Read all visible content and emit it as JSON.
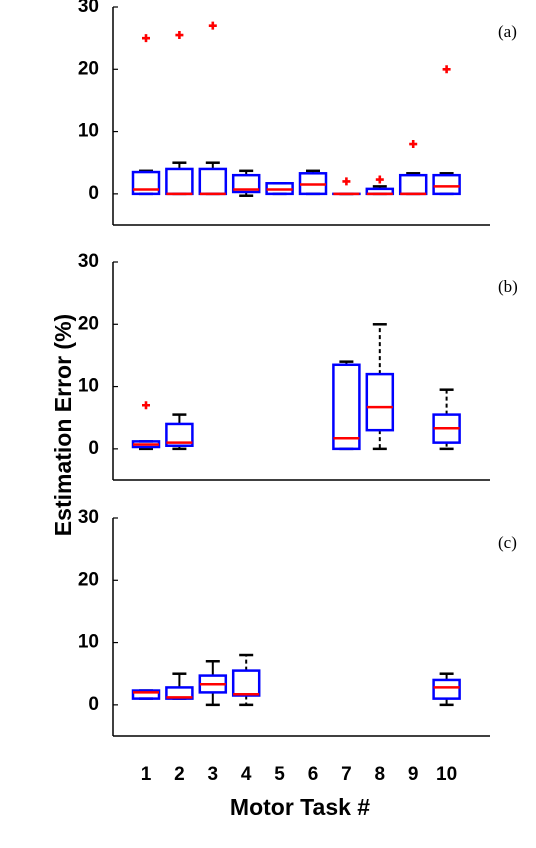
{
  "figure": {
    "ylabel": "Estimation Error (%)",
    "xlabel": "Motor Task #"
  },
  "colors": {
    "box": "#0000ff",
    "median": "#ff0000",
    "whisker": "#000000",
    "outlier": "#ff0000"
  },
  "chart_data": [
    {
      "type": "box",
      "panel_label": "(a)",
      "xlabel": "",
      "ylabel": "",
      "ylim": [
        -5,
        30
      ],
      "yticks": [
        0,
        10,
        20,
        30
      ],
      "categories": [
        "1",
        "2",
        "3",
        "4",
        "5",
        "6",
        "7",
        "8",
        "9",
        "10"
      ],
      "boxes": [
        {
          "task": "1",
          "lo": 0,
          "q1": 0,
          "median": 0.7,
          "q3": 3.5,
          "hi": 3.7,
          "outliers": [
            25
          ],
          "dashed": false
        },
        {
          "task": "2",
          "lo": 0,
          "q1": 0,
          "median": 0,
          "q3": 4.0,
          "hi": 5.0,
          "outliers": [
            25.5
          ],
          "dashed": false
        },
        {
          "task": "3",
          "lo": 0,
          "q1": 0,
          "median": 0,
          "q3": 4.0,
          "hi": 5.0,
          "outliers": [
            27
          ],
          "dashed": false
        },
        {
          "task": "4",
          "lo": -0.3,
          "q1": 0.3,
          "median": 0.7,
          "q3": 3.0,
          "hi": 3.7,
          "outliers": [],
          "dashed": false
        },
        {
          "task": "5",
          "lo": 0,
          "q1": 0,
          "median": 0.7,
          "q3": 1.7,
          "hi": 1.7,
          "outliers": [],
          "dashed": false
        },
        {
          "task": "6",
          "lo": 0,
          "q1": 0,
          "median": 1.5,
          "q3": 3.3,
          "hi": 3.7,
          "outliers": [],
          "dashed": false
        },
        {
          "task": "7",
          "lo": 0,
          "q1": 0,
          "median": 0,
          "q3": 0,
          "hi": 0,
          "outliers": [
            2
          ],
          "dashed": false
        },
        {
          "task": "8",
          "lo": 0,
          "q1": 0,
          "median": 0,
          "q3": 0.8,
          "hi": 1.2,
          "outliers": [
            2.3
          ],
          "dashed": false
        },
        {
          "task": "9",
          "lo": 0,
          "q1": 0,
          "median": 0,
          "q3": 3.0,
          "hi": 3.3,
          "outliers": [
            8
          ],
          "dashed": false
        },
        {
          "task": "10",
          "lo": 0,
          "q1": 0,
          "median": 1.2,
          "q3": 3.0,
          "hi": 3.3,
          "outliers": [
            20
          ],
          "dashed": false
        }
      ]
    },
    {
      "type": "box",
      "panel_label": "(b)",
      "xlabel": "",
      "ylabel": "",
      "ylim": [
        -5,
        30
      ],
      "yticks": [
        0,
        10,
        20,
        30
      ],
      "categories": [
        "1",
        "2",
        "3",
        "4",
        "5",
        "6",
        "7",
        "8",
        "9",
        "10"
      ],
      "boxes": [
        {
          "task": "1",
          "lo": 0,
          "q1": 0.3,
          "median": 0.7,
          "q3": 1.2,
          "hi": 1.2,
          "outliers": [
            7
          ],
          "dashed": false
        },
        {
          "task": "2",
          "lo": 0,
          "q1": 0.5,
          "median": 1.0,
          "q3": 4.0,
          "hi": 5.5,
          "outliers": [],
          "dashed": false
        },
        {
          "task": "7",
          "lo": 0,
          "q1": 0,
          "median": 1.7,
          "q3": 13.5,
          "hi": 14.0,
          "outliers": [],
          "dashed": false
        },
        {
          "task": "8",
          "lo": 0,
          "q1": 3.0,
          "median": 6.7,
          "q3": 12.0,
          "hi": 20.0,
          "outliers": [],
          "dashed": true
        },
        {
          "task": "10",
          "lo": 0,
          "q1": 1.0,
          "median": 3.3,
          "q3": 5.5,
          "hi": 9.5,
          "outliers": [],
          "dashed": true
        }
      ]
    },
    {
      "type": "box",
      "panel_label": "(c)",
      "xlabel": "",
      "ylabel": "",
      "ylim": [
        -5,
        30
      ],
      "yticks": [
        0,
        10,
        20,
        30
      ],
      "categories": [
        "1",
        "2",
        "3",
        "4",
        "5",
        "6",
        "7",
        "8",
        "9",
        "10"
      ],
      "boxes": [
        {
          "task": "1",
          "lo": 1.0,
          "q1": 1.0,
          "median": 2.0,
          "q3": 2.3,
          "hi": 2.3,
          "outliers": [],
          "dashed": false
        },
        {
          "task": "2",
          "lo": 1.0,
          "q1": 1.0,
          "median": 1.2,
          "q3": 2.8,
          "hi": 5.0,
          "outliers": [],
          "dashed": false
        },
        {
          "task": "3",
          "lo": 0,
          "q1": 2.0,
          "median": 3.3,
          "q3": 4.7,
          "hi": 7.0,
          "outliers": [],
          "dashed": false
        },
        {
          "task": "4",
          "lo": 0,
          "q1": 1.5,
          "median": 1.7,
          "q3": 5.5,
          "hi": 8.0,
          "outliers": [],
          "dashed": true
        },
        {
          "task": "10",
          "lo": 0,
          "q1": 1.0,
          "median": 2.8,
          "q3": 4.0,
          "hi": 5.0,
          "outliers": [],
          "dashed": false
        }
      ]
    }
  ]
}
